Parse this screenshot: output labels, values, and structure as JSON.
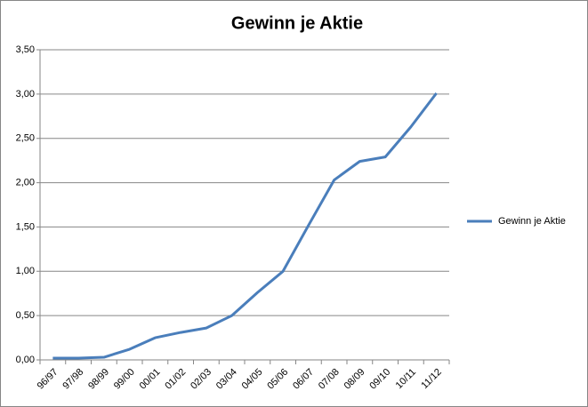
{
  "chart_data": {
    "type": "line",
    "title": "Gewinn je Aktie",
    "categories": [
      "96/97",
      "97/98",
      "98/99",
      "99/00",
      "00/01",
      "01/02",
      "02/03",
      "03/04",
      "04/05",
      "05/06",
      "06/07",
      "07/08",
      "08/09",
      "09/10",
      "10/11",
      "11/12"
    ],
    "series": [
      {
        "name": "Gewinn je Aktie",
        "color": "#4a7ebb",
        "values": [
          0.02,
          0.02,
          0.03,
          0.12,
          0.25,
          0.31,
          0.36,
          0.5,
          0.76,
          1.0,
          1.52,
          2.03,
          2.24,
          2.29,
          2.63,
          3.01
        ]
      }
    ],
    "ylim": [
      0,
      3.5
    ],
    "yticks": [
      {
        "value": 0,
        "label": "0,00"
      },
      {
        "value": 0.5,
        "label": "0,50"
      },
      {
        "value": 1,
        "label": "1,00"
      },
      {
        "value": 1.5,
        "label": "1,50"
      },
      {
        "value": 2,
        "label": "2,00"
      },
      {
        "value": 2.5,
        "label": "2,50"
      },
      {
        "value": 3,
        "label": "3,00"
      },
      {
        "value": 3.5,
        "label": "3,50"
      }
    ],
    "grid": true,
    "legend": "right"
  }
}
